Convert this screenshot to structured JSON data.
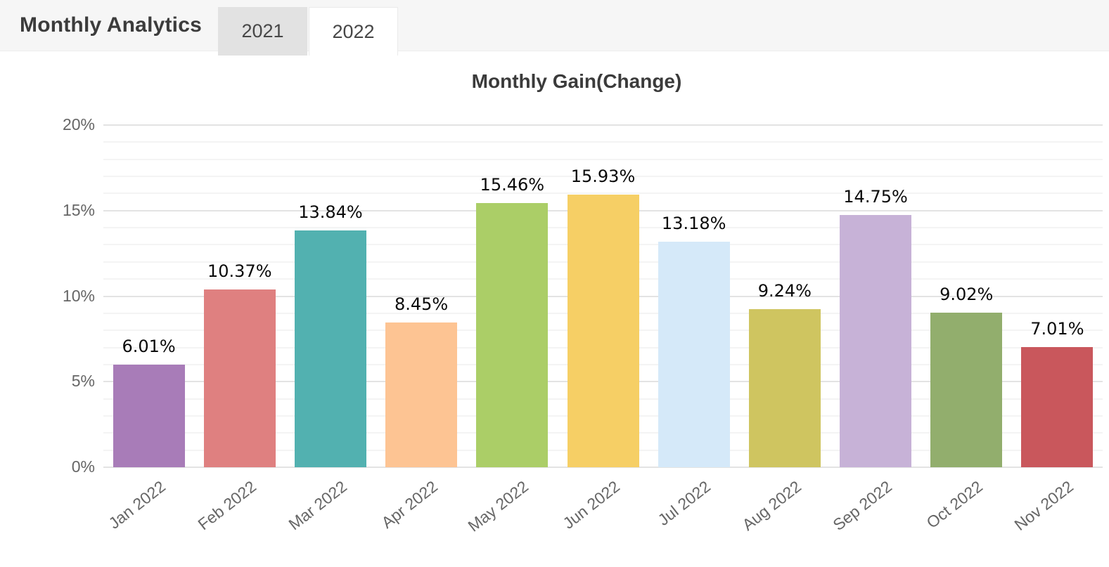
{
  "header": {
    "title": "Monthly Analytics",
    "tabs": [
      {
        "label": "2021",
        "active": false
      },
      {
        "label": "2022",
        "active": true
      }
    ]
  },
  "chart_data": {
    "type": "bar",
    "title": "Monthly Gain(Change)",
    "categories": [
      "Jan 2022",
      "Feb 2022",
      "Mar 2022",
      "Apr 2022",
      "May 2022",
      "Jun 2022",
      "Jul 2022",
      "Aug 2022",
      "Sep 2022",
      "Oct 2022",
      "Nov 2022"
    ],
    "values": [
      6.01,
      10.37,
      13.84,
      8.45,
      15.46,
      15.93,
      13.18,
      9.24,
      14.75,
      9.02,
      7.01
    ],
    "value_labels": [
      "6.01%",
      "10.37%",
      "13.84%",
      "8.45%",
      "15.46%",
      "15.93%",
      "13.18%",
      "9.24%",
      "14.75%",
      "9.02%",
      "7.01%"
    ],
    "bar_colors": [
      "#a87cb8",
      "#df8080",
      "#52b1b0",
      "#fdc493",
      "#abce67",
      "#f6cf65",
      "#d5e9f9",
      "#cfc560",
      "#c7b2d7",
      "#92ae6d",
      "#c9575c"
    ],
    "xlabel": "",
    "ylabel": "",
    "ylim": [
      0,
      20
    ],
    "y_tick_step": 5,
    "minor_grid_step": 1,
    "y_tick_labels": [
      "0%",
      "5%",
      "10%",
      "15%",
      "20%"
    ],
    "grid": true,
    "legend": "none"
  },
  "colors": {
    "header_bg": "#f6f6f6",
    "tab_inactive_bg": "#e2e2e2",
    "tab_active_bg": "#ffffff",
    "major_grid": "#e3e3e3",
    "minor_grid": "#f4f4f4",
    "axis_text": "#666666",
    "value_text": "#0a0a0a"
  }
}
